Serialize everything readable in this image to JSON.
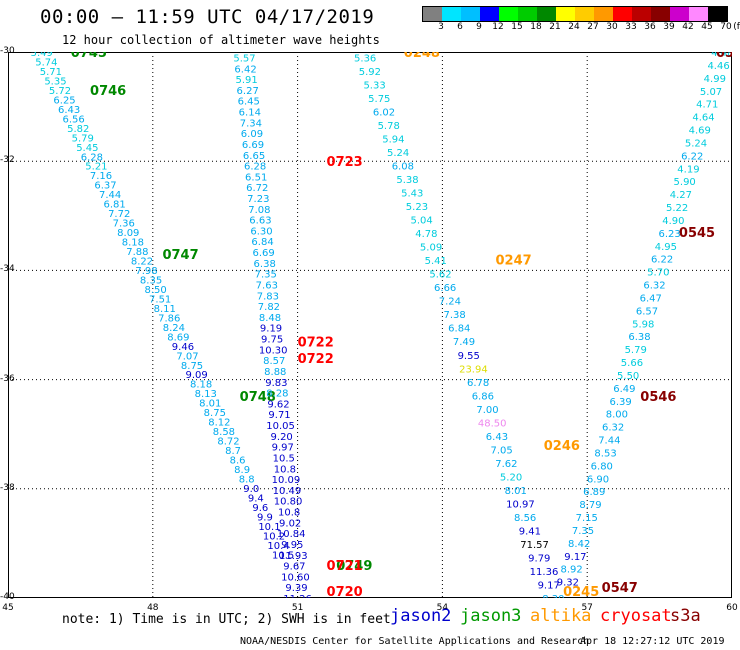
{
  "header": {
    "title": "00:00 — 11:59 UTC 04/17/2019",
    "subtitle": "12 hour collection of altimeter wave heights"
  },
  "colorbar": {
    "unit": "(ft)",
    "labels": [
      "3",
      "6",
      "9",
      "12",
      "15",
      "18",
      "21",
      "24",
      "27",
      "30",
      "33",
      "36",
      "39",
      "42",
      "45",
      "70"
    ],
    "colors": [
      "#808080",
      "#00e5ff",
      "#00bfff",
      "#0000ff",
      "#00ff00",
      "#00cc00",
      "#008800",
      "#ffff00",
      "#ffcc00",
      "#ff9900",
      "#ff0000",
      "#bb0000",
      "#880000",
      "#cc00cc",
      "#ff88ff",
      "#000000"
    ]
  },
  "axes": {
    "lat_labels": [
      "-30",
      "-32",
      "-34",
      "-36",
      "-38",
      "-40"
    ],
    "lon_labels": [
      "45",
      "48",
      "51",
      "54",
      "57",
      "60"
    ]
  },
  "tracks": [
    {
      "name": "jason3-west",
      "times": [
        {
          "text": "0745",
          "color": "#008800"
        },
        {
          "text": "0746",
          "color": "#008800"
        },
        {
          "text": "0747",
          "color": "#008800"
        },
        {
          "text": "0748",
          "color": "#008800"
        },
        {
          "text": "0749",
          "color": "#008800"
        }
      ],
      "values": [
        "5.49",
        "5.74",
        "5.71",
        "5.35",
        "5.72",
        "6.25",
        "6.43",
        "6.56",
        "5.82",
        "5.79",
        "5.45",
        "6.28",
        "5.21",
        "7.16",
        "6.37",
        "7.44",
        "6.81",
        "7.72",
        "7.36",
        "8.09",
        "8.18",
        "7.88",
        "8.22",
        "7.98",
        "8.35",
        "8.50",
        "7.51",
        "8.11",
        "7.86",
        "8.24",
        "8.69",
        "9.46",
        "7.07",
        "8.75",
        "9.09",
        "8.18",
        "8.13",
        "8.01",
        "8.75",
        "8.12",
        "8.58",
        "8.72",
        "8.7",
        "8.6",
        "8.9",
        "8.8",
        "9.0",
        "9.4",
        "9.6",
        "9.9",
        "10.1",
        "10.2",
        "10.4",
        "10.5"
      ]
    },
    {
      "name": "cryosat-west",
      "times": [
        {
          "text": "0723",
          "color": "#ff0000"
        },
        {
          "text": "0722",
          "color": "#ff0000"
        },
        {
          "text": "0722",
          "color": "#ff0000"
        },
        {
          "text": "0720",
          "color": "#ff0000"
        },
        {
          "text": "0721",
          "color": "#ff0000"
        }
      ],
      "values": [
        "5.57",
        "6.42",
        "5.91",
        "6.27",
        "6.45",
        "6.14",
        "7.34",
        "6.09",
        "6.69",
        "6.65",
        "6.28",
        "6.51",
        "6.72",
        "7.23",
        "7.08",
        "6.63",
        "6.30",
        "6.84",
        "6.69",
        "6.38",
        "7.35",
        "7.63",
        "7.83",
        "7.82",
        "8.48",
        "9.19",
        "9.75",
        "10.30",
        "8.57",
        "8.88",
        "9.83",
        "8.28",
        "9.62",
        "9.71",
        "10.05",
        "9.20",
        "9.97",
        "10.5",
        "10.8",
        "10.09",
        "10.49",
        "10.80",
        "10.8",
        "9.02",
        "10.84",
        "9.95",
        "11.93",
        "9.67",
        "10.60",
        "9.39",
        "11.26"
      ]
    },
    {
      "name": "altika-mid",
      "times": [
        {
          "text": "0248",
          "color": "#ff9900"
        },
        {
          "text": "0247",
          "color": "#ff9900"
        },
        {
          "text": "0246",
          "color": "#ff9900"
        },
        {
          "text": "0245",
          "color": "#ff9900"
        }
      ],
      "values": [
        "5.36",
        "5.92",
        "5.33",
        "5.75",
        "6.02",
        "5.78",
        "5.94",
        "5.24",
        "6.08",
        "5.38",
        "5.43",
        "5.23",
        "5.04",
        "4.78",
        "5.09",
        "5.41",
        "5.62",
        "6.66",
        "7.24",
        "7.38",
        "6.84",
        "7.49",
        "9.55",
        "23.94",
        "6.78",
        "6.86",
        "7.00",
        "48.50",
        "6.43",
        "7.05",
        "7.62",
        "5.20",
        "8.01",
        "10.97",
        "8.56",
        "9.41",
        "71.57",
        "9.79",
        "11.36",
        "9.17",
        "8.30"
      ]
    },
    {
      "name": "s3a-east",
      "times": [
        {
          "text": "05",
          "color": "#880000"
        },
        {
          "text": "0545",
          "color": "#880000"
        },
        {
          "text": "0546",
          "color": "#880000"
        },
        {
          "text": "0547",
          "color": "#880000"
        }
      ],
      "values": [
        "4.48",
        "4.46",
        "4.99",
        "5.07",
        "4.71",
        "4.64",
        "4.69",
        "5.24",
        "6.22",
        "4.19",
        "5.90",
        "4.27",
        "5.22",
        "4.90",
        "6.23",
        "4.95",
        "6.22",
        "5.70",
        "6.32",
        "6.47",
        "6.57",
        "5.98",
        "6.38",
        "5.79",
        "5.66",
        "5.50",
        "6.49",
        "6.39",
        "8.00",
        "6.32",
        "7.44",
        "8.53",
        "6.80",
        "6.90",
        "6.89",
        "8.79",
        "7.15",
        "7.35",
        "8.42",
        "9.17",
        "8.92",
        "9.32"
      ]
    }
  ],
  "note": "note: 1) Time is in UTC; 2) SWH is in feet",
  "legend": [
    {
      "label": "jason2",
      "color": "#0000cc"
    },
    {
      "label": "jason3",
      "color": "#009900"
    },
    {
      "label": "altika",
      "color": "#ff9900"
    },
    {
      "label": "cryosat",
      "color": "#ff0000"
    },
    {
      "label": "s3a",
      "color": "#880000"
    }
  ],
  "footer": {
    "center": "NOAA/NESDIS Center for Satellite Applications and Research",
    "timestamp": "Apr 18 12:27:12 UTC 2019"
  }
}
